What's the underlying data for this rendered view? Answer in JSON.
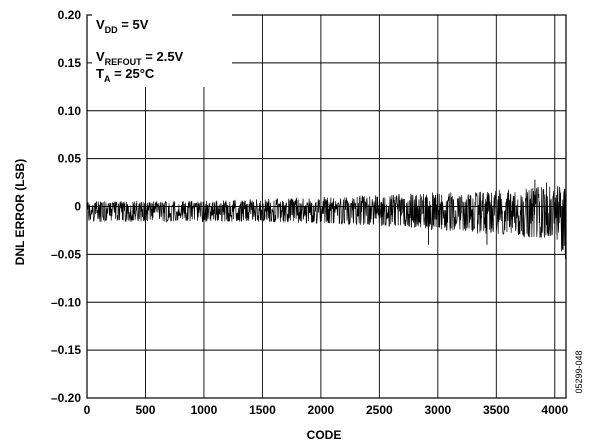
{
  "chart_data": {
    "type": "line",
    "title": "",
    "xlabel": "CODE",
    "ylabel": "DNL ERROR (LSB)",
    "xlim": [
      0,
      4096
    ],
    "ylim": [
      -0.2,
      0.2
    ],
    "x_ticks": [
      0,
      500,
      1000,
      1500,
      2000,
      2500,
      3000,
      3500,
      4000
    ],
    "x_tick_labels": [
      "0",
      "500",
      "1000",
      "1500",
      "2000",
      "2500",
      "3000",
      "3500",
      "4000"
    ],
    "y_ticks": [
      0.2,
      0.15,
      0.1,
      0.05,
      0,
      -0.05,
      -0.1,
      -0.15,
      -0.2
    ],
    "y_tick_labels": [
      "0.20",
      "0.15",
      "0.10",
      "0.05",
      "0",
      "–0.05",
      "–0.10",
      "–0.15",
      "–0.20"
    ],
    "grid": true,
    "annotations": {
      "vdd": {
        "main": "V",
        "sub": "DD",
        "rest": " = 5V"
      },
      "vref": {
        "main": "V",
        "sub": "REFOUT",
        "rest": " = 2.5V"
      },
      "ta": {
        "main": "T",
        "sub": "A",
        "rest": " = 25°C"
      }
    },
    "figure_id": "05299-048",
    "series": [
      {
        "envelope_x": [
          0,
          500,
          1000,
          1500,
          2000,
          2500,
          3000,
          3500,
          4000,
          4095
        ],
        "upper": [
          0.006,
          0.006,
          0.006,
          0.008,
          0.01,
          0.012,
          0.015,
          0.018,
          0.022,
          0.025
        ],
        "lower": [
          -0.016,
          -0.016,
          -0.016,
          -0.016,
          -0.018,
          -0.02,
          -0.025,
          -0.03,
          -0.035,
          -0.055
        ],
        "outliers": [
          {
            "x": 2920,
            "y": -0.04
          },
          {
            "x": 3420,
            "y": -0.04
          },
          {
            "x": 4060,
            "y": -0.045
          },
          {
            "x": 4092,
            "y": -0.055
          },
          {
            "x": 3930,
            "y": 0.025
          },
          {
            "x": 3830,
            "y": 0.028
          }
        ]
      }
    ]
  }
}
